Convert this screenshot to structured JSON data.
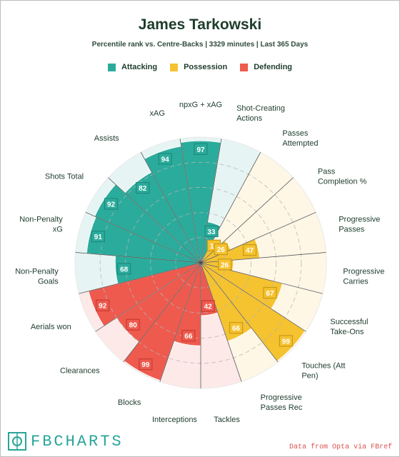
{
  "title": "James Tarkowski",
  "subtitle": "Percentile rank vs. Centre-Backs | 3329 minutes | Last 365 Days",
  "legend": [
    {
      "label": "Attacking",
      "color": "#2bab9b"
    },
    {
      "label": "Possession",
      "color": "#f5c230"
    },
    {
      "label": "Defending",
      "color": "#ee5a4e"
    }
  ],
  "colors": {
    "Attacking": {
      "fill": "#2bab9b",
      "bg": "#e6f5f3",
      "box": "#1e8a7d"
    },
    "Possession": {
      "fill": "#f5c230",
      "bg": "#fef7e6",
      "box": "#c99a16"
    },
    "Defending": {
      "fill": "#ee5a4e",
      "bg": "#fde9e7",
      "box": "#c73b31"
    }
  },
  "chart_data": {
    "type": "radial-bar",
    "title": "James Tarkowski",
    "subtitle": "Percentile rank vs. Centre-Backs | 3329 minutes | Last 365 Days",
    "range": [
      0,
      100
    ],
    "gridlines": [
      20,
      40,
      60,
      80
    ],
    "categories": [
      {
        "label": "npxG + xAG",
        "value": 97,
        "group": "Attacking"
      },
      {
        "label": "Shot-Creating Actions",
        "value": 33,
        "group": "Attacking"
      },
      {
        "label": "Passes Attempted",
        "value": 17,
        "group": "Possession"
      },
      {
        "label": "Pass Completion %",
        "value": 26,
        "group": "Possession"
      },
      {
        "label": "Progressive Passes",
        "value": 47,
        "group": "Possession"
      },
      {
        "label": "Progressive Carries",
        "value": 26,
        "group": "Possession"
      },
      {
        "label": "Successful Take-Ons",
        "value": 67,
        "group": "Possession"
      },
      {
        "label": "Touches (Att Pen)",
        "value": 99,
        "group": "Possession"
      },
      {
        "label": "Progressive Passes Rec",
        "value": 66,
        "group": "Possession"
      },
      {
        "label": "Tackles",
        "value": 42,
        "group": "Defending"
      },
      {
        "label": "Interceptions",
        "value": 66,
        "group": "Defending"
      },
      {
        "label": "Blocks",
        "value": 99,
        "group": "Defending"
      },
      {
        "label": "Clearances",
        "value": 80,
        "group": "Defending"
      },
      {
        "label": "Aerials won",
        "value": 92,
        "group": "Defending"
      },
      {
        "label": "Non-Penalty Goals",
        "value": 68,
        "group": "Attacking"
      },
      {
        "label": "Non-Penalty xG",
        "value": 91,
        "group": "Attacking"
      },
      {
        "label": "Shots Total",
        "value": 92,
        "group": "Attacking"
      },
      {
        "label": "Assists",
        "value": 82,
        "group": "Attacking"
      },
      {
        "label": "xAG",
        "value": 94,
        "group": "Attacking"
      }
    ]
  },
  "footer": {
    "brand": "FBCHARTS",
    "source": "Data from Opta via FBref"
  }
}
